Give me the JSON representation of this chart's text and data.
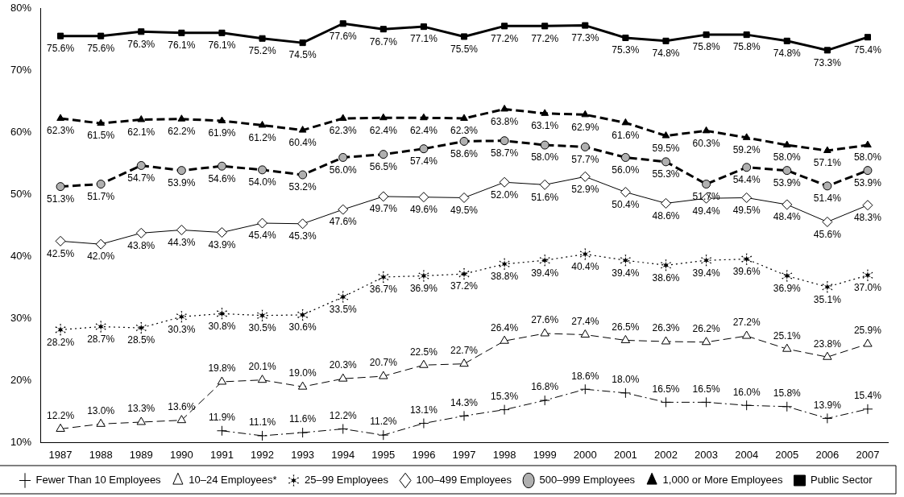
{
  "chart_data": {
    "type": "line",
    "categories": [
      "1987",
      "1988",
      "1989",
      "1990",
      "1991",
      "1992",
      "1993",
      "1994",
      "1995",
      "1996",
      "1997",
      "1998",
      "1999",
      "2000",
      "2001",
      "2002",
      "2003",
      "2004",
      "2005",
      "2006",
      "2007"
    ],
    "ylim": [
      10,
      80
    ],
    "yticks": [
      {
        "value": 10,
        "label": "10%"
      },
      {
        "value": 20,
        "label": "20%"
      },
      {
        "value": 30,
        "label": "30%"
      },
      {
        "value": 40,
        "label": "40%"
      },
      {
        "value": 50,
        "label": "50%"
      },
      {
        "value": 60,
        "label": "60%"
      },
      {
        "value": 70,
        "label": "70%"
      },
      {
        "value": 80,
        "label": "80%"
      }
    ],
    "legend": "bottom",
    "grid": false,
    "series": [
      {
        "name": "Fewer Than 10 Employees",
        "color": "#000000",
        "marker": "cross",
        "line_style": "dashdot",
        "values": [
          null,
          null,
          null,
          null,
          11.9,
          11.1,
          11.6,
          12.2,
          11.2,
          13.1,
          14.3,
          15.3,
          16.8,
          18.6,
          18.0,
          16.5,
          16.5,
          16.0,
          15.8,
          13.9,
          15.4
        ],
        "value_labels": [
          null,
          null,
          null,
          null,
          "11.9%",
          "11.1%",
          "11.6%",
          "12.2%",
          "11.2%",
          "13.1%",
          "14.3%",
          "15.3%",
          "16.8%",
          "18.6%",
          "18.0%",
          "16.5%",
          "16.5%",
          "16.0%",
          "15.8%",
          "13.9%",
          "15.4%"
        ]
      },
      {
        "name": "10–24 Employees*",
        "color": "#000000",
        "marker": "triangle",
        "line_style": "dashed",
        "values": [
          12.2,
          13.0,
          13.3,
          13.6,
          19.8,
          20.1,
          19.0,
          20.3,
          20.7,
          22.5,
          22.7,
          26.4,
          27.6,
          27.4,
          26.5,
          26.3,
          26.2,
          27.2,
          25.1,
          23.8,
          25.9
        ],
        "value_labels": [
          "12.2%",
          "13.0%",
          "13.3%",
          "13.6%",
          "19.8%",
          "20.1%",
          "19.0%",
          "20.3%",
          "20.7%",
          "22.5%",
          "22.7%",
          "26.4%",
          "27.6%",
          "27.4%",
          "26.5%",
          "26.3%",
          "26.2%",
          "27.2%",
          "25.1%",
          "23.8%",
          "25.9%"
        ]
      },
      {
        "name": "25–99 Employees",
        "color": "#000000",
        "marker": "star",
        "line_style": "dotted",
        "values": [
          28.2,
          28.7,
          28.5,
          30.3,
          30.8,
          30.5,
          30.6,
          33.5,
          36.7,
          36.9,
          37.2,
          38.8,
          39.4,
          40.4,
          39.4,
          38.6,
          39.4,
          39.6,
          36.9,
          35.1,
          37.0
        ],
        "value_labels": [
          "28.2%",
          "28.7%",
          "28.5%",
          "30.3%",
          "30.8%",
          "30.5%",
          "30.6%",
          "33.5%",
          "36.7%",
          "36.9%",
          "37.2%",
          "38.8%",
          "39.4%",
          "40.4%",
          "39.4%",
          "38.6%",
          "39.4%",
          "39.6%",
          "36.9%",
          "35.1%",
          "37.0%"
        ]
      },
      {
        "name": "100–499 Employees",
        "color": "#000000",
        "marker": "diamond",
        "line_style": "solid",
        "values": [
          42.5,
          42.0,
          43.8,
          44.3,
          43.9,
          45.4,
          45.3,
          47.6,
          49.7,
          49.6,
          49.5,
          52.0,
          51.6,
          52.9,
          50.4,
          48.6,
          49.4,
          49.5,
          48.4,
          45.6,
          48.3
        ],
        "value_labels": [
          "42.5%",
          "42.0%",
          "43.8%",
          "44.3%",
          "43.9%",
          "45.4%",
          "45.3%",
          "47.6%",
          "49.7%",
          "49.6%",
          "49.5%",
          "52.0%",
          "51.6%",
          "52.9%",
          "50.4%",
          "48.6%",
          "49.4%",
          "49.5%",
          "48.4%",
          "45.6%",
          "48.3%"
        ]
      },
      {
        "name": "500–999 Employees",
        "color": "#000000",
        "marker": "circle",
        "line_style": "dashed",
        "values": [
          51.3,
          51.7,
          54.7,
          53.9,
          54.6,
          54.0,
          53.2,
          56.0,
          56.5,
          57.4,
          58.6,
          58.7,
          58.0,
          57.7,
          56.0,
          55.3,
          51.7,
          54.4,
          53.9,
          51.4,
          53.9
        ],
        "value_labels": [
          "51.3%",
          "51.7%",
          "54.7%",
          "53.9%",
          "54.6%",
          "54.0%",
          "53.2%",
          "56.0%",
          "56.5%",
          "57.4%",
          "58.6%",
          "58.7%",
          "58.0%",
          "57.7%",
          "56.0%",
          "55.3%",
          "51.7%",
          "54.4%",
          "53.9%",
          "51.4%",
          "53.9%"
        ]
      },
      {
        "name": "1,000 or More Employees",
        "color": "#000000",
        "marker": "triangle",
        "line_style": "dashed",
        "values": [
          62.3,
          61.5,
          62.1,
          62.2,
          61.9,
          61.2,
          60.4,
          62.3,
          62.4,
          62.4,
          62.3,
          63.8,
          63.1,
          62.9,
          61.6,
          59.5,
          60.3,
          59.2,
          58.0,
          57.1,
          58.0
        ],
        "value_labels": [
          "62.3%",
          "61.5%",
          "62.1%",
          "62.2%",
          "61.9%",
          "61.2%",
          "60.4%",
          "62.3%",
          "62.4%",
          "62.4%",
          "62.3%",
          "63.8%",
          "63.1%",
          "62.9%",
          "61.6%",
          "59.5%",
          "60.3%",
          "59.2%",
          "58.0%",
          "57.1%",
          "58.0%"
        ]
      },
      {
        "name": "Public Sector",
        "color": "#000000",
        "marker": "square",
        "line_style": "solid",
        "values": [
          75.6,
          75.6,
          76.3,
          76.1,
          76.1,
          75.2,
          74.5,
          77.6,
          76.7,
          77.1,
          75.5,
          77.2,
          77.2,
          77.3,
          75.3,
          74.8,
          75.8,
          75.8,
          74.8,
          73.3,
          75.4
        ],
        "value_labels": [
          "75.6%",
          "75.6%",
          "76.3%",
          "76.1%",
          "76.1%",
          "75.2%",
          "74.5%",
          "77.6%",
          "76.7%",
          "77.1%",
          "75.5%",
          "77.2%",
          "77.2%",
          "77.3%",
          "75.3%",
          "74.8%",
          "75.8%",
          "75.8%",
          "74.8%",
          "73.3%",
          "75.4%"
        ]
      }
    ]
  }
}
